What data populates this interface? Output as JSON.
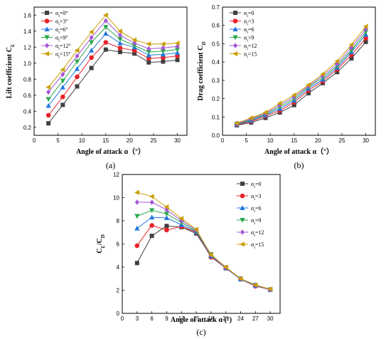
{
  "chart_data": [
    {
      "id": "a",
      "type": "line",
      "panel_label": "(a)",
      "xlabel": "Angle of attack α（°）",
      "ylabel": "Lift coefficient C",
      "ylabel_sub": "L",
      "xlim": [
        0,
        32
      ],
      "ylim": [
        0.1,
        1.7
      ],
      "xticks": [
        0,
        5,
        10,
        15,
        20,
        25,
        30
      ],
      "yticks": [
        0.2,
        0.4,
        0.6,
        0.8,
        1.0,
        1.2,
        1.4,
        1.6
      ],
      "ytick_labels": [
        "0.2",
        "0.4",
        "0.6",
        "0.8",
        "1.0",
        "1.2",
        "1.4",
        "1.6"
      ],
      "legend_position": "top-left",
      "x": [
        3,
        6,
        9,
        12,
        15,
        18,
        21,
        24,
        27,
        30
      ],
      "series": [
        {
          "name": "αi=0°",
          "color": "#404040",
          "marker": "square",
          "values": [
            0.25,
            0.48,
            0.71,
            0.94,
            1.17,
            1.14,
            1.12,
            1.01,
            1.02,
            1.04
          ]
        },
        {
          "name": "αi=3°",
          "color": "#e8222a",
          "marker": "circle",
          "values": [
            0.35,
            0.58,
            0.83,
            1.07,
            1.26,
            1.19,
            1.16,
            1.06,
            1.07,
            1.09
          ]
        },
        {
          "name": "αi=6°",
          "color": "#2277dd",
          "marker": "triUp",
          "values": [
            0.47,
            0.7,
            0.93,
            1.16,
            1.37,
            1.25,
            1.2,
            1.1,
            1.11,
            1.13
          ]
        },
        {
          "name": "αi=9°",
          "color": "#2aa84a",
          "marker": "triDown",
          "values": [
            0.55,
            0.78,
            1.02,
            1.26,
            1.45,
            1.3,
            1.22,
            1.14,
            1.15,
            1.17
          ]
        },
        {
          "name": "αi=12°",
          "color": "#a855d8",
          "marker": "diamond",
          "values": [
            0.64,
            0.86,
            1.09,
            1.32,
            1.53,
            1.35,
            1.25,
            1.18,
            1.19,
            1.21
          ]
        },
        {
          "name": "αi=15°",
          "color": "#c8a000",
          "marker": "triLeft",
          "values": [
            0.7,
            0.92,
            1.16,
            1.39,
            1.6,
            1.4,
            1.29,
            1.24,
            1.24,
            1.25
          ]
        }
      ]
    },
    {
      "id": "b",
      "type": "line",
      "panel_label": "(b)",
      "xlabel": "Angle of attack α（°）",
      "ylabel": "Drag coefficient C",
      "ylabel_sub": "D",
      "xlim": [
        0,
        32
      ],
      "ylim": [
        0,
        0.7
      ],
      "xticks": [
        0,
        5,
        10,
        15,
        20,
        25,
        30
      ],
      "yticks": [
        0,
        0.1,
        0.2,
        0.3,
        0.4,
        0.5,
        0.6,
        0.7
      ],
      "ytick_labels": [
        "0.0",
        "0.1",
        "0.2",
        "0.3",
        "0.4",
        "0.5",
        "0.6",
        "0.7"
      ],
      "legend_position": "top-left",
      "x": [
        3,
        6,
        9,
        12,
        15,
        18,
        21,
        24,
        27,
        30
      ],
      "series": [
        {
          "name": "αi=0",
          "color": "#404040",
          "marker": "square",
          "values": [
            0.055,
            0.07,
            0.095,
            0.125,
            0.165,
            0.23,
            0.285,
            0.345,
            0.42,
            0.51
          ]
        },
        {
          "name": "αi=3",
          "color": "#e8222a",
          "marker": "circle",
          "values": [
            0.058,
            0.075,
            0.105,
            0.135,
            0.18,
            0.245,
            0.295,
            0.36,
            0.44,
            0.53
          ]
        },
        {
          "name": "αi=6",
          "color": "#2277dd",
          "marker": "triUp",
          "values": [
            0.06,
            0.08,
            0.11,
            0.145,
            0.19,
            0.255,
            0.305,
            0.37,
            0.455,
            0.55
          ]
        },
        {
          "name": "αi=9",
          "color": "#2aa84a",
          "marker": "triDown",
          "values": [
            0.062,
            0.085,
            0.115,
            0.155,
            0.2,
            0.265,
            0.315,
            0.38,
            0.465,
            0.565
          ]
        },
        {
          "name": "αi=12",
          "color": "#a855d8",
          "marker": "diamond",
          "values": [
            0.064,
            0.09,
            0.12,
            0.165,
            0.21,
            0.27,
            0.325,
            0.39,
            0.48,
            0.58
          ]
        },
        {
          "name": "αi=15",
          "color": "#c8a000",
          "marker": "triLeft",
          "values": [
            0.066,
            0.095,
            0.125,
            0.175,
            0.22,
            0.275,
            0.335,
            0.405,
            0.495,
            0.595
          ]
        }
      ]
    },
    {
      "id": "c",
      "type": "line",
      "panel_label": "(c)",
      "xlabel": "Angle of attack α (°)",
      "ylabel": "C",
      "ylabel_sub": "L",
      "ylabel_mid": "/C",
      "ylabel_sub2": "D",
      "xlim": [
        0,
        32
      ],
      "ylim": [
        0,
        12
      ],
      "xticks": [
        0,
        3,
        6,
        9,
        12,
        15,
        18,
        21,
        24,
        27,
        30
      ],
      "yticks": [
        0,
        2,
        4,
        6,
        8,
        10,
        12
      ],
      "ytick_labels": [
        "0",
        "2",
        "4",
        "6",
        "8",
        "10",
        "12"
      ],
      "legend_position": "top-right",
      "x": [
        3,
        6,
        9,
        12,
        15,
        18,
        21,
        24,
        27,
        30
      ],
      "series": [
        {
          "name": "αi=0",
          "color": "#404040",
          "marker": "square",
          "values": [
            4.35,
            6.7,
            7.55,
            7.45,
            6.9,
            4.9,
            3.9,
            2.95,
            2.4,
            2.05
          ]
        },
        {
          "name": "αi=3",
          "color": "#e8222a",
          "marker": "circle",
          "values": [
            5.85,
            7.6,
            7.2,
            7.5,
            7.0,
            4.85,
            3.95,
            2.95,
            2.35,
            2.05
          ]
        },
        {
          "name": "αi=6",
          "color": "#2277dd",
          "marker": "triUp",
          "values": [
            7.35,
            8.3,
            8.25,
            7.65,
            7.05,
            4.95,
            3.95,
            2.95,
            2.4,
            2.05
          ]
        },
        {
          "name": "αi=9",
          "color": "#2aa84a",
          "marker": "triDown",
          "values": [
            8.4,
            8.9,
            8.6,
            7.85,
            7.1,
            5.1,
            3.95,
            3.0,
            2.45,
            2.05
          ]
        },
        {
          "name": "αi=12",
          "color": "#a855d8",
          "marker": "diamond",
          "values": [
            9.6,
            9.6,
            8.95,
            8.0,
            7.2,
            5.05,
            3.95,
            3.0,
            2.45,
            2.05
          ]
        },
        {
          "name": "αi=15",
          "color": "#c8a000",
          "marker": "triLeft",
          "values": [
            10.45,
            10.1,
            9.2,
            8.2,
            7.25,
            5.05,
            4.0,
            3.0,
            2.45,
            2.1
          ]
        }
      ]
    }
  ]
}
